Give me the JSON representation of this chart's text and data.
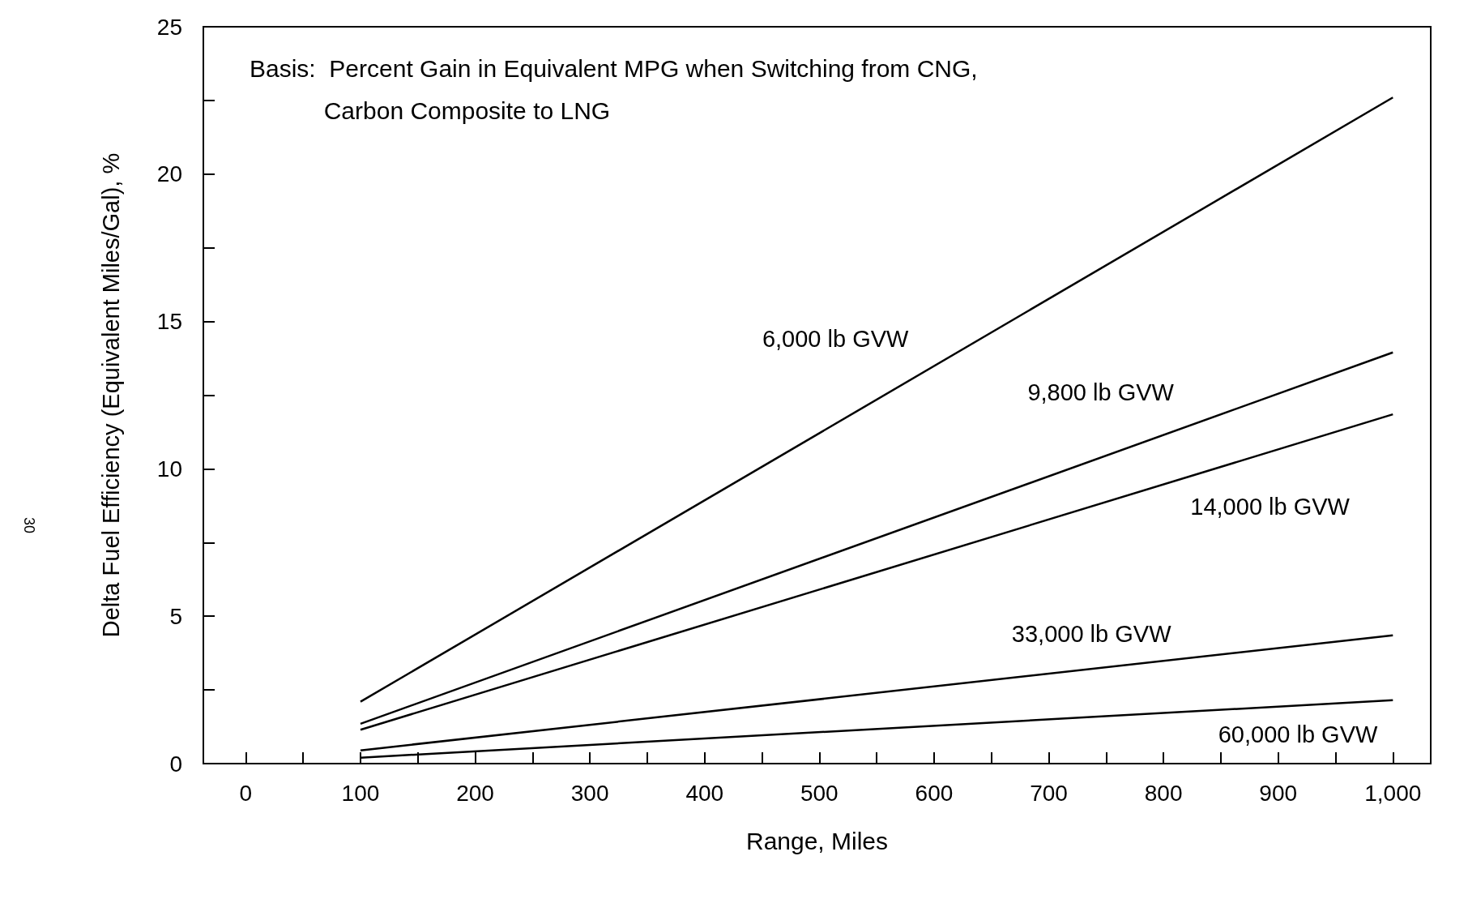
{
  "chart_data": {
    "type": "line",
    "xlabel": "Range, Miles",
    "ylabel": "Delta Fuel Efficiency (Equivalent Miles/Gal), %",
    "xlim": [
      -37,
      1033
    ],
    "ylim": [
      0,
      25
    ],
    "xticks": [
      0,
      {
        "value": 50,
        "label": null
      },
      100,
      {
        "value": 150,
        "label": null
      },
      200,
      {
        "value": 250,
        "label": null
      },
      300,
      {
        "value": 350,
        "label": null
      },
      400,
      {
        "value": 450,
        "label": null
      },
      500,
      {
        "value": 550,
        "label": null
      },
      600,
      {
        "value": 650,
        "label": null
      },
      700,
      {
        "value": 750,
        "label": null
      },
      800,
      {
        "value": 850,
        "label": null
      },
      900,
      {
        "value": 950,
        "label": null
      },
      {
        "value": 1000,
        "label": "1,000"
      }
    ],
    "yticks": [
      0,
      {
        "value": 2.5,
        "label": null
      },
      5,
      {
        "value": 7.5,
        "label": null
      },
      10,
      {
        "value": 12.5,
        "label": null
      },
      15,
      {
        "value": 17.5,
        "label": null
      },
      20,
      {
        "value": 22.5,
        "label": null
      },
      25
    ],
    "grid": false,
    "legend": false,
    "marker": "none",
    "line_style": "solid",
    "annotations": [
      "Basis:  Percent Gain in Equivalent MPG when Switching from CNG,\n           Carbon Composite to LNG",
      "30"
    ],
    "x": [
      100,
      1000
    ],
    "series": [
      {
        "name": "6,000 lb GVW",
        "color": "#000000",
        "values": [
          2.1,
          22.6
        ]
      },
      {
        "name": "9,800 lb GVW",
        "color": "#000000",
        "values": [
          1.35,
          13.95
        ]
      },
      {
        "name": "14,000 lb GVW",
        "color": "#000000",
        "values": [
          1.15,
          11.85
        ]
      },
      {
        "name": "33,000 lb GVW",
        "color": "#000000",
        "values": [
          0.45,
          4.35
        ]
      },
      {
        "name": "60,000 lb GVW",
        "color": "#000000",
        "values": [
          0.2,
          2.15
        ]
      }
    ]
  }
}
